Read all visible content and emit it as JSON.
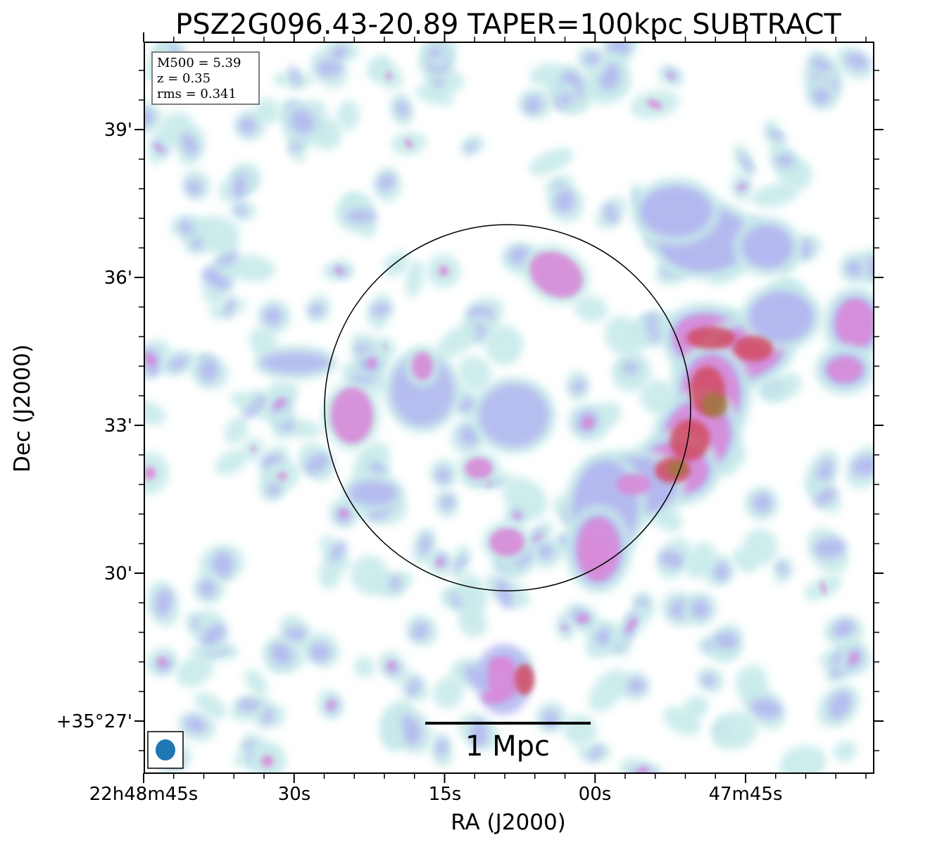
{
  "title": "PSZ2G096.43-20.89 TAPER=100kpc SUBTRACT",
  "axes": {
    "xlabel": "RA (J2000)",
    "ylabel": "Dec (J2000)",
    "x_ticks": [
      "22h48m45s",
      "30s",
      "15s",
      "00s",
      "47m45s"
    ],
    "y_ticks": [
      "39'",
      "36'",
      "33'",
      "30'",
      "+35°27'"
    ]
  },
  "info_box": {
    "mass": "M500 = 5.39",
    "redshift": "z = 0.35",
    "rms": "rms = 0.341"
  },
  "scale_bar": {
    "label": "1 Mpc"
  },
  "beam": {
    "color": "#1f77b4",
    "icon": "beam-ellipse-icon"
  },
  "colors": {
    "low": "#c8eaea",
    "mid": "#b4b8f0",
    "high": "#d88ad8",
    "peak": "#d24c64",
    "core": "#a07840"
  }
}
